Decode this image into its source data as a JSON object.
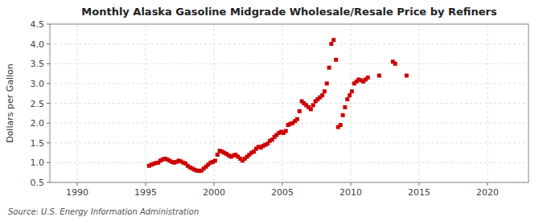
{
  "chart_data": {
    "type": "scatter",
    "title": "Monthly Alaska Gasoline Midgrade Wholesale/Resale Price by Refiners",
    "ylabel": "Dollars per Gallon",
    "annotations": [
      "Source: U.S. Energy Information Administration"
    ],
    "color": "#cc0000",
    "marker": "square",
    "grid": true,
    "xlim": [
      1988,
      2023
    ],
    "ylim": [
      0.5,
      4.5
    ],
    "xticks": [
      1990,
      1995,
      2000,
      2005,
      2010,
      2015,
      2020
    ],
    "yticks": [
      0.5,
      {
        "value": 1.0,
        "label": "1.0"
      },
      1.5,
      {
        "value": 2.0,
        "label": "2.0"
      },
      2.5,
      {
        "value": 3.0,
        "label": "3.0"
      },
      3.5,
      {
        "value": 4.0,
        "label": "4.0"
      },
      4.5
    ],
    "x": [
      1995.25,
      1995.42,
      1995.58,
      1995.75,
      1995.92,
      1996.08,
      1996.25,
      1996.42,
      1996.58,
      1996.75,
      1996.92,
      1997.08,
      1997.25,
      1997.42,
      1997.58,
      1997.75,
      1997.92,
      1998.08,
      1998.25,
      1998.42,
      1998.58,
      1998.75,
      1998.92,
      1999.08,
      1999.25,
      1999.42,
      1999.58,
      1999.75,
      1999.92,
      2000.08,
      2000.25,
      2000.42,
      2000.58,
      2000.75,
      2000.92,
      2001.08,
      2001.25,
      2001.42,
      2001.58,
      2001.75,
      2001.92,
      2002.08,
      2002.25,
      2002.42,
      2002.58,
      2002.75,
      2002.92,
      2003.08,
      2003.25,
      2003.42,
      2003.58,
      2003.75,
      2003.92,
      2004.08,
      2004.25,
      2004.42,
      2004.58,
      2004.75,
      2004.92,
      2005.08,
      2005.25,
      2005.42,
      2005.58,
      2005.75,
      2005.92,
      2006.08,
      2006.25,
      2006.42,
      2006.58,
      2006.75,
      2006.92,
      2007.08,
      2007.25,
      2007.42,
      2007.58,
      2007.75,
      2007.92,
      2008.08,
      2008.25,
      2008.42,
      2008.58,
      2008.75,
      2008.92,
      2009.08,
      2009.25,
      2009.42,
      2009.58,
      2009.75,
      2009.92,
      2010.08,
      2010.25,
      2010.42,
      2010.58,
      2010.75,
      2010.92,
      2011.08,
      2011.25,
      2012.08,
      2013.08,
      2013.25,
      2014.08
    ],
    "values": [
      0.92,
      0.95,
      0.97,
      0.99,
      1.0,
      1.05,
      1.08,
      1.1,
      1.08,
      1.05,
      1.02,
      1.0,
      1.02,
      1.05,
      1.03,
      1.0,
      0.98,
      0.92,
      0.88,
      0.85,
      0.82,
      0.8,
      0.79,
      0.8,
      0.85,
      0.9,
      0.95,
      1.0,
      1.02,
      1.05,
      1.2,
      1.3,
      1.28,
      1.25,
      1.22,
      1.18,
      1.15,
      1.18,
      1.2,
      1.15,
      1.1,
      1.05,
      1.1,
      1.15,
      1.2,
      1.25,
      1.28,
      1.35,
      1.4,
      1.38,
      1.42,
      1.45,
      1.48,
      1.55,
      1.58,
      1.65,
      1.7,
      1.75,
      1.78,
      1.75,
      1.8,
      1.95,
      1.98,
      2.0,
      2.05,
      2.1,
      2.3,
      2.55,
      2.5,
      2.45,
      2.4,
      2.35,
      2.45,
      2.55,
      2.6,
      2.65,
      2.7,
      2.8,
      3.0,
      3.4,
      4.0,
      4.1,
      3.6,
      1.9,
      1.95,
      2.2,
      2.4,
      2.6,
      2.7,
      2.8,
      3.0,
      3.05,
      3.1,
      3.08,
      3.05,
      3.1,
      3.15,
      3.2,
      3.55,
      3.5,
      3.2
    ]
  }
}
